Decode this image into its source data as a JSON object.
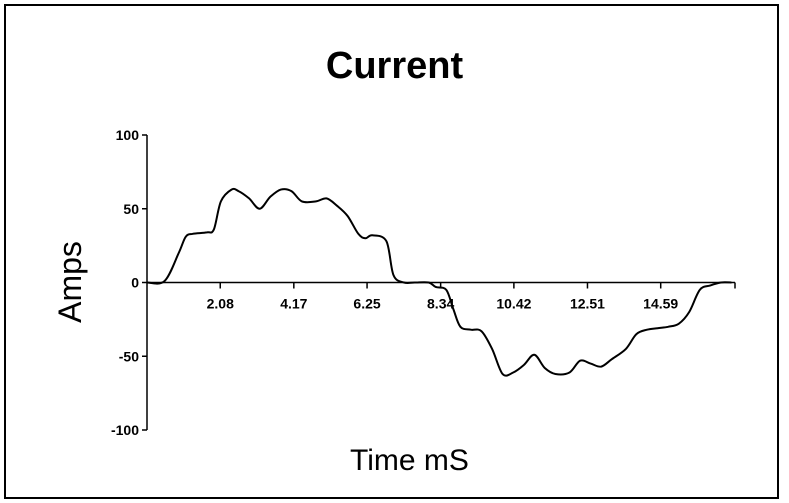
{
  "chart_data": {
    "type": "line",
    "title": "Current",
    "xlabel": "Time mS",
    "ylabel": "Amps",
    "xlim": [
      0,
      16.7
    ],
    "ylim": [
      -100,
      100
    ],
    "x_ticks": [
      2.08,
      4.17,
      6.25,
      8.34,
      10.42,
      12.51,
      14.59
    ],
    "x_tick_labels": [
      "2.08",
      "4.17",
      "6.25",
      "8.34",
      "10.42",
      "12.51",
      "14.59"
    ],
    "y_ticks": [
      100,
      50,
      0,
      -50,
      -100
    ],
    "y_tick_labels": [
      "100",
      "50",
      "0",
      "-50",
      "-100"
    ],
    "grid": false,
    "legend": "none",
    "line_color": "#000000",
    "series": [
      {
        "x": [
          0.0,
          0.5,
          0.9,
          1.1,
          1.3,
          1.7,
          1.9,
          2.1,
          2.4,
          2.6,
          2.9,
          3.2,
          3.5,
          3.8,
          4.1,
          4.4,
          4.8,
          5.1,
          5.4,
          5.7,
          6.0,
          6.2,
          6.4,
          6.8,
          7.0,
          7.3,
          7.6,
          8.0,
          8.2,
          8.5,
          8.7,
          8.9,
          9.2,
          9.5,
          9.8,
          10.1,
          10.4,
          10.7,
          11.0,
          11.3,
          11.6,
          12.0,
          12.3,
          12.6,
          12.9,
          13.2,
          13.6,
          13.9,
          14.2,
          14.5,
          14.8,
          15.1,
          15.4,
          15.7,
          16.0,
          16.3,
          16.6
        ],
        "y": [
          0,
          1,
          20,
          31,
          33,
          34,
          36,
          55,
          63,
          62,
          57,
          50,
          58,
          63,
          62,
          55,
          55,
          57,
          52,
          45,
          33,
          30,
          32,
          28,
          5,
          0,
          0,
          0,
          -3,
          -5,
          -18,
          -30,
          -32,
          -33,
          -45,
          -62,
          -61,
          -56,
          -49,
          -58,
          -62,
          -61,
          -53,
          -55,
          -57,
          -52,
          -45,
          -35,
          -32,
          -31,
          -30,
          -28,
          -20,
          -5,
          -2,
          0,
          0
        ]
      }
    ]
  }
}
